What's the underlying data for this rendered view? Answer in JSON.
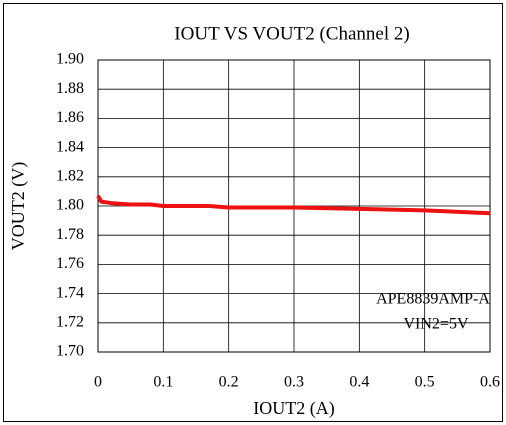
{
  "chart_data": {
    "type": "line",
    "title": "IOUT  VS VOUT2 (Channel 2)",
    "x_label": "IOUT2 (A)",
    "y_label": "VOUT2 (V)",
    "annotations": [
      "APE8839AMP-A",
      "VIN2=5V"
    ],
    "x": [
      0,
      0.005,
      0.02,
      0.05,
      0.08,
      0.1,
      0.17,
      0.2,
      0.3,
      0.4,
      0.5,
      0.6
    ],
    "series": [
      {
        "color": "#ee1111",
        "values": [
          1.807,
          1.803,
          1.802,
          1.801,
          1.801,
          1.8,
          1.8,
          1.799,
          1.799,
          1.798,
          1.797,
          1.795
        ]
      }
    ],
    "xlim": [
      0,
      0.6
    ],
    "xticks": [
      0,
      0.1,
      0.2,
      0.3,
      0.4,
      0.5,
      0.6
    ],
    "ylim": [
      1.7,
      1.9
    ],
    "yticks": [
      {
        "value": 1.7,
        "label": "1.70"
      },
      {
        "value": 1.72,
        "label": "1.72"
      },
      {
        "value": 1.74,
        "label": "1.74"
      },
      {
        "value": 1.76,
        "label": "1.76"
      },
      {
        "value": 1.78,
        "label": "1.78"
      },
      {
        "value": 1.8,
        "label": "1.80"
      },
      {
        "value": 1.82,
        "label": "1.82"
      },
      {
        "value": 1.84,
        "label": "1.84"
      },
      {
        "value": 1.86,
        "label": "1.86"
      },
      {
        "value": 1.88,
        "label": "1.88"
      },
      {
        "value": 1.9,
        "label": "1.90"
      }
    ],
    "grid": true
  }
}
